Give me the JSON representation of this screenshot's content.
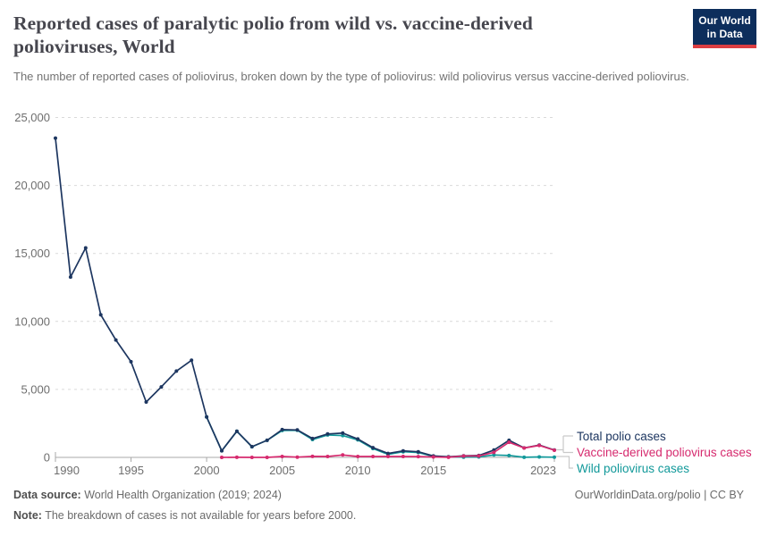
{
  "header": {
    "title": "Reported cases of paralytic polio from wild vs. vaccine-derived polioviruses, World",
    "subtitle": "The number of reported cases of poliovirus, broken down by the type of poliovirus: wild poliovirus versus vaccine-derived poliovirus."
  },
  "logo": {
    "line1": "Our World",
    "line2": "in Data",
    "bg_color": "#0d2e5c",
    "bar_color": "#dc3e42"
  },
  "footer": {
    "data_source_label": "Data source:",
    "data_source_value": " World Health Organization (2019; 2024)",
    "note_label": "Note:",
    "note_value": " The breakdown of cases is not available for years before 2000.",
    "credit": "OurWorldinData.org/polio | CC BY"
  },
  "chart_data": {
    "type": "line",
    "title": "Reported cases of paralytic polio from wild vs. vaccine-derived polioviruses, World",
    "xlabel": "",
    "ylabel": "",
    "xlim": [
      1990,
      2023
    ],
    "ylim": [
      0,
      25000
    ],
    "x_ticks": [
      1990,
      1995,
      2000,
      2005,
      2010,
      2015,
      2023
    ],
    "y_ticks": [
      0,
      5000,
      10000,
      15000,
      20000,
      25000
    ],
    "grid": "horizontal-dashed",
    "legend_position": "right-of-line-ends",
    "series": [
      {
        "name": "Total polio cases",
        "color": "#1d3660",
        "x": [
          1990,
          1991,
          1992,
          1993,
          1994,
          1995,
          1996,
          1997,
          1998,
          1999,
          2000,
          2001,
          2002,
          2003,
          2004,
          2005,
          2006,
          2007,
          2008,
          2009,
          2010,
          2011,
          2012,
          2013,
          2014,
          2015,
          2016,
          2017,
          2018,
          2019,
          2020,
          2021,
          2022,
          2023
        ],
        "values": [
          23484,
          13266,
          15406,
          10487,
          8635,
          7035,
          4074,
          5185,
          6349,
          7141,
          2971,
          486,
          1923,
          786,
          1257,
          2045,
          2017,
          1384,
          1719,
          1784,
          1351,
          717,
          291,
          482,
          415,
          106,
          42,
          118,
          137,
          542,
          1253,
          694,
          908,
          536
        ]
      },
      {
        "name": "Vaccine-derived poliovirus cases",
        "color": "#d62a6e",
        "x": [
          2001,
          2002,
          2003,
          2004,
          2005,
          2006,
          2007,
          2008,
          2009,
          2010,
          2011,
          2012,
          2013,
          2014,
          2015,
          2016,
          2017,
          2018,
          2019,
          2020,
          2021,
          2022,
          2023
        ],
        "values": [
          3,
          5,
          2,
          2,
          66,
          20,
          69,
          68,
          180,
          63,
          67,
          68,
          66,
          56,
          32,
          5,
          96,
          104,
          366,
          1113,
          688,
          878,
          524
        ]
      },
      {
        "name": "Wild poliovirus cases",
        "color": "#12999a",
        "x": [
          2000,
          2001,
          2002,
          2003,
          2004,
          2005,
          2006,
          2007,
          2008,
          2009,
          2010,
          2011,
          2012,
          2013,
          2014,
          2015,
          2016,
          2017,
          2018,
          2019,
          2020,
          2021,
          2022,
          2023
        ],
        "values": [
          2971,
          483,
          1918,
          784,
          1255,
          1979,
          1997,
          1315,
          1651,
          1604,
          1288,
          650,
          223,
          416,
          359,
          74,
          37,
          22,
          33,
          176,
          140,
          6,
          30,
          12
        ]
      }
    ],
    "axis_colors": {
      "grid": "#d9d9d9",
      "axis": "#a8a8a8",
      "tick_label": "#6e6e6e",
      "connector": "#c9c9c9"
    }
  }
}
